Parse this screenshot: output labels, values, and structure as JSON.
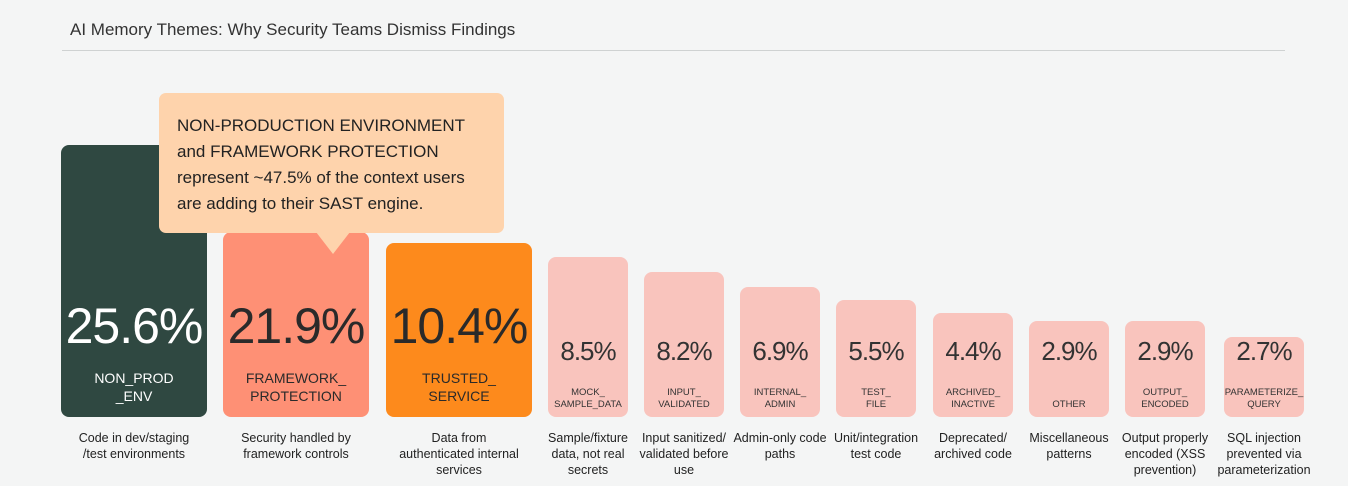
{
  "chart_data": {
    "type": "bar",
    "title": "AI Memory Themes: Why Security Teams Dismiss Findings",
    "categories": [
      "NON_PROD_ENV",
      "FRAMEWORK_PROTECTION",
      "TRUSTED_SERVICE",
      "MOCK_SAMPLE_DATA",
      "INPUT_VALIDATED",
      "INTERNAL_ADMIN",
      "TEST_FILE",
      "ARCHIVED_INACTIVE",
      "OTHER",
      "OUTPUT_ENCODED",
      "PARAMETERIZE_QUERY"
    ],
    "values": [
      25.6,
      21.9,
      10.4,
      8.5,
      8.2,
      6.9,
      5.5,
      4.4,
      2.9,
      2.9,
      2.7
    ],
    "unit": "%",
    "bars": [
      {
        "value_label": "25.6%",
        "label_lines": [
          "NON_PROD",
          "_ENV"
        ],
        "description": "Code in dev/staging /test environments",
        "color": "#2f4841",
        "text_color": "#ffffff"
      },
      {
        "value_label": "21.9%",
        "label_lines": [
          "FRAMEWORK_",
          "PROTECTION"
        ],
        "description": "Security handled by framework controls",
        "color": "#fe9075",
        "text_color": "#2a2a2a"
      },
      {
        "value_label": "10.4%",
        "label_lines": [
          "TRUSTED_",
          "SERVICE"
        ],
        "description": "Data from authenticated internal services",
        "color": "#fd8a1c",
        "text_color": "#2a2a2a"
      },
      {
        "value_label": "8.5%",
        "label_lines": [
          "MOCK_",
          "SAMPLE_DATA"
        ],
        "description": "Sample/fixture data, not real secrets",
        "color": "#f9c4bd",
        "text_color": "#333333"
      },
      {
        "value_label": "8.2%",
        "label_lines": [
          "INPUT_",
          "VALIDATED"
        ],
        "description": "Input sanitized/ validated before use",
        "color": "#f9c4bd",
        "text_color": "#333333"
      },
      {
        "value_label": "6.9%",
        "label_lines": [
          "INTERNAL_",
          "ADMIN"
        ],
        "description": "Admin-only code paths",
        "color": "#f9c4bd",
        "text_color": "#333333"
      },
      {
        "value_label": "5.5%",
        "label_lines": [
          "TEST_",
          "FILE"
        ],
        "description": "Unit/integration test code",
        "color": "#f9c4bd",
        "text_color": "#333333"
      },
      {
        "value_label": "4.4%",
        "label_lines": [
          "ARCHIVED_",
          "INACTIVE"
        ],
        "description": "Deprecated/ archived code",
        "color": "#f9c4bd",
        "text_color": "#333333"
      },
      {
        "value_label": "2.9%",
        "label_lines": [
          "",
          "OTHER"
        ],
        "description": "Miscellaneous patterns",
        "color": "#f9c4bd",
        "text_color": "#333333"
      },
      {
        "value_label": "2.9%",
        "label_lines": [
          "OUTPUT_",
          "ENCODED"
        ],
        "description": "Output properly encoded (XSS prevention)",
        "color": "#f9c4bd",
        "text_color": "#333333"
      },
      {
        "value_label": "2.7%",
        "label_lines": [
          "PARAMETERIZE_",
          "QUERY"
        ],
        "description": "SQL injection prevented via parameterization",
        "color": "#f9c4bd",
        "text_color": "#333333"
      }
    ],
    "annotation": "NON-PRODUCTION ENVIRONMENT and FRAMEWORK PROTECTION represent ~47.5% of the context users are adding to their SAST engine.",
    "grid": false
  }
}
